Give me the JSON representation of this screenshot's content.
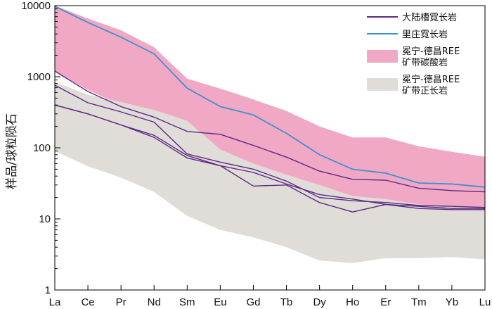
{
  "chart_data": {
    "type": "line",
    "scale": "log",
    "title": "",
    "xlabel": "",
    "ylabel": "样品/球粒陨石",
    "ylim": [
      1,
      10000
    ],
    "categories": [
      "La",
      "Ce",
      "Pr",
      "Nd",
      "Sm",
      "Eu",
      "Gd",
      "Tb",
      "Dy",
      "Ho",
      "Er",
      "Tm",
      "Yb",
      "Lu"
    ],
    "yticks": [
      {
        "value": 1,
        "label": "1"
      },
      {
        "value": 10,
        "label": "10"
      },
      {
        "value": 100,
        "label": "100"
      },
      {
        "value": 1000,
        "label": "1000"
      },
      {
        "value": 10000,
        "label": "10000"
      }
    ],
    "bands": [
      {
        "name": "冕宁-德昌REE矿带碳酸岩",
        "color": "#f0a8c4",
        "upper": [
          10000,
          6600,
          4500,
          2600,
          940,
          680,
          480,
          330,
          200,
          140,
          140,
          105,
          88,
          75
        ],
        "lower": [
          1200,
          650,
          400,
          265,
          105,
          88,
          58,
          40,
          27,
          20,
          17,
          15.5,
          14.5,
          14
        ]
      },
      {
        "name": "冕宁-德昌REE矿带正长岩",
        "color": "#e0ddd9",
        "upper": [
          840,
          560,
          440,
          340,
          240,
          95,
          60,
          42,
          30,
          21,
          19,
          16,
          15,
          14
        ],
        "lower": [
          90,
          55,
          38,
          24,
          11,
          7,
          5.5,
          4,
          2.6,
          2.4,
          2.8,
          2.8,
          2.9,
          2.7
        ]
      }
    ],
    "series": [
      {
        "name": "大陆槽霓长岩",
        "group": "大陆槽霓长岩",
        "color": "#5b2a83",
        "values": [
          1200,
          620,
          380,
          270,
          170,
          155,
          108,
          74,
          47,
          36,
          35,
          27,
          25,
          24
        ]
      },
      {
        "name": "大陆槽霓长岩",
        "group": "大陆槽霓长岩",
        "color": "#5b2a83",
        "values": [
          760,
          430,
          320,
          230,
          82,
          63,
          50,
          34,
          20,
          18,
          17,
          15.5,
          15,
          14.5
        ]
      },
      {
        "name": "大陆槽霓长岩",
        "group": "大陆槽霓长岩",
        "color": "#5b2a83",
        "values": [
          400,
          300,
          210,
          150,
          78,
          56,
          45,
          31,
          22,
          19,
          16,
          14,
          13.5,
          13.5
        ]
      },
      {
        "name": "大陆槽霓长岩",
        "group": "大陆槽霓长岩",
        "color": "#5b2a83",
        "values": [
          400,
          300,
          210,
          140,
          72,
          56,
          29,
          30,
          17,
          12.5,
          16,
          15,
          14,
          14
        ]
      },
      {
        "name": "里庄霓长岩",
        "group": "里庄霓长岩",
        "color": "#3f8fd0",
        "values": [
          9800,
          5800,
          3600,
          2100,
          690,
          380,
          290,
          160,
          80,
          50,
          44,
          32,
          31,
          28
        ]
      }
    ],
    "legend": {
      "position": "top-right",
      "entries": [
        {
          "label": "大陆槽霓长岩",
          "kind": "line",
          "color": "#5b2a83"
        },
        {
          "label": "里庄霓长岩",
          "kind": "line",
          "color": "#3f8fd0"
        },
        {
          "label": "冕宁-德昌REE矿带碳酸岩",
          "lines": [
            "冕宁-德昌REE",
            "矿带碳酸岩"
          ],
          "kind": "patch",
          "color": "#f0a8c4"
        },
        {
          "label": "冕宁-德昌REE矿带正长岩",
          "lines": [
            "冕宁-德昌REE",
            "矿带正长岩"
          ],
          "kind": "patch",
          "color": "#e0ddd9"
        }
      ]
    }
  }
}
